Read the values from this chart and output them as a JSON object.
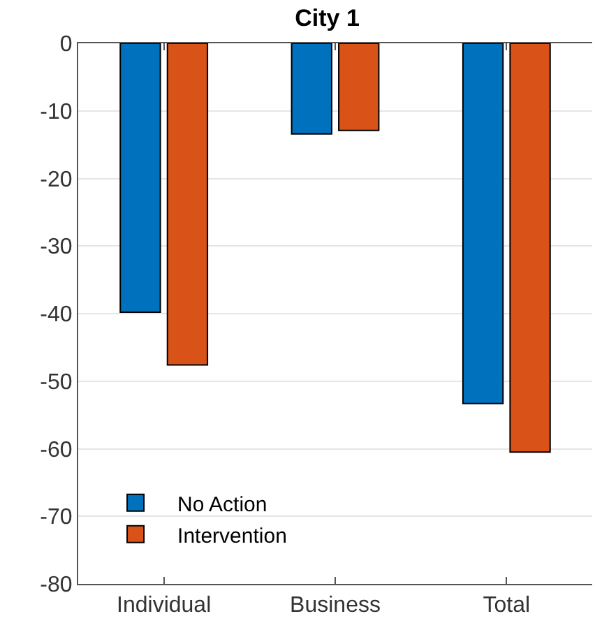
{
  "chart_data": {
    "type": "bar",
    "title": "City 1",
    "categories": [
      "Individual",
      "Business",
      "Total"
    ],
    "series": [
      {
        "name": "No Action",
        "color": "#0072bd",
        "values": [
          -39.8,
          -13.4,
          -53.3
        ]
      },
      {
        "name": "Intervention",
        "color": "#d95319",
        "values": [
          -47.6,
          -12.9,
          -60.5
        ]
      }
    ],
    "ylim": [
      -80,
      0
    ],
    "yticks": [
      0,
      -10,
      -20,
      -30,
      -40,
      -50,
      -60,
      -70,
      -80
    ],
    "grid": "y",
    "legend": "bottom left"
  }
}
